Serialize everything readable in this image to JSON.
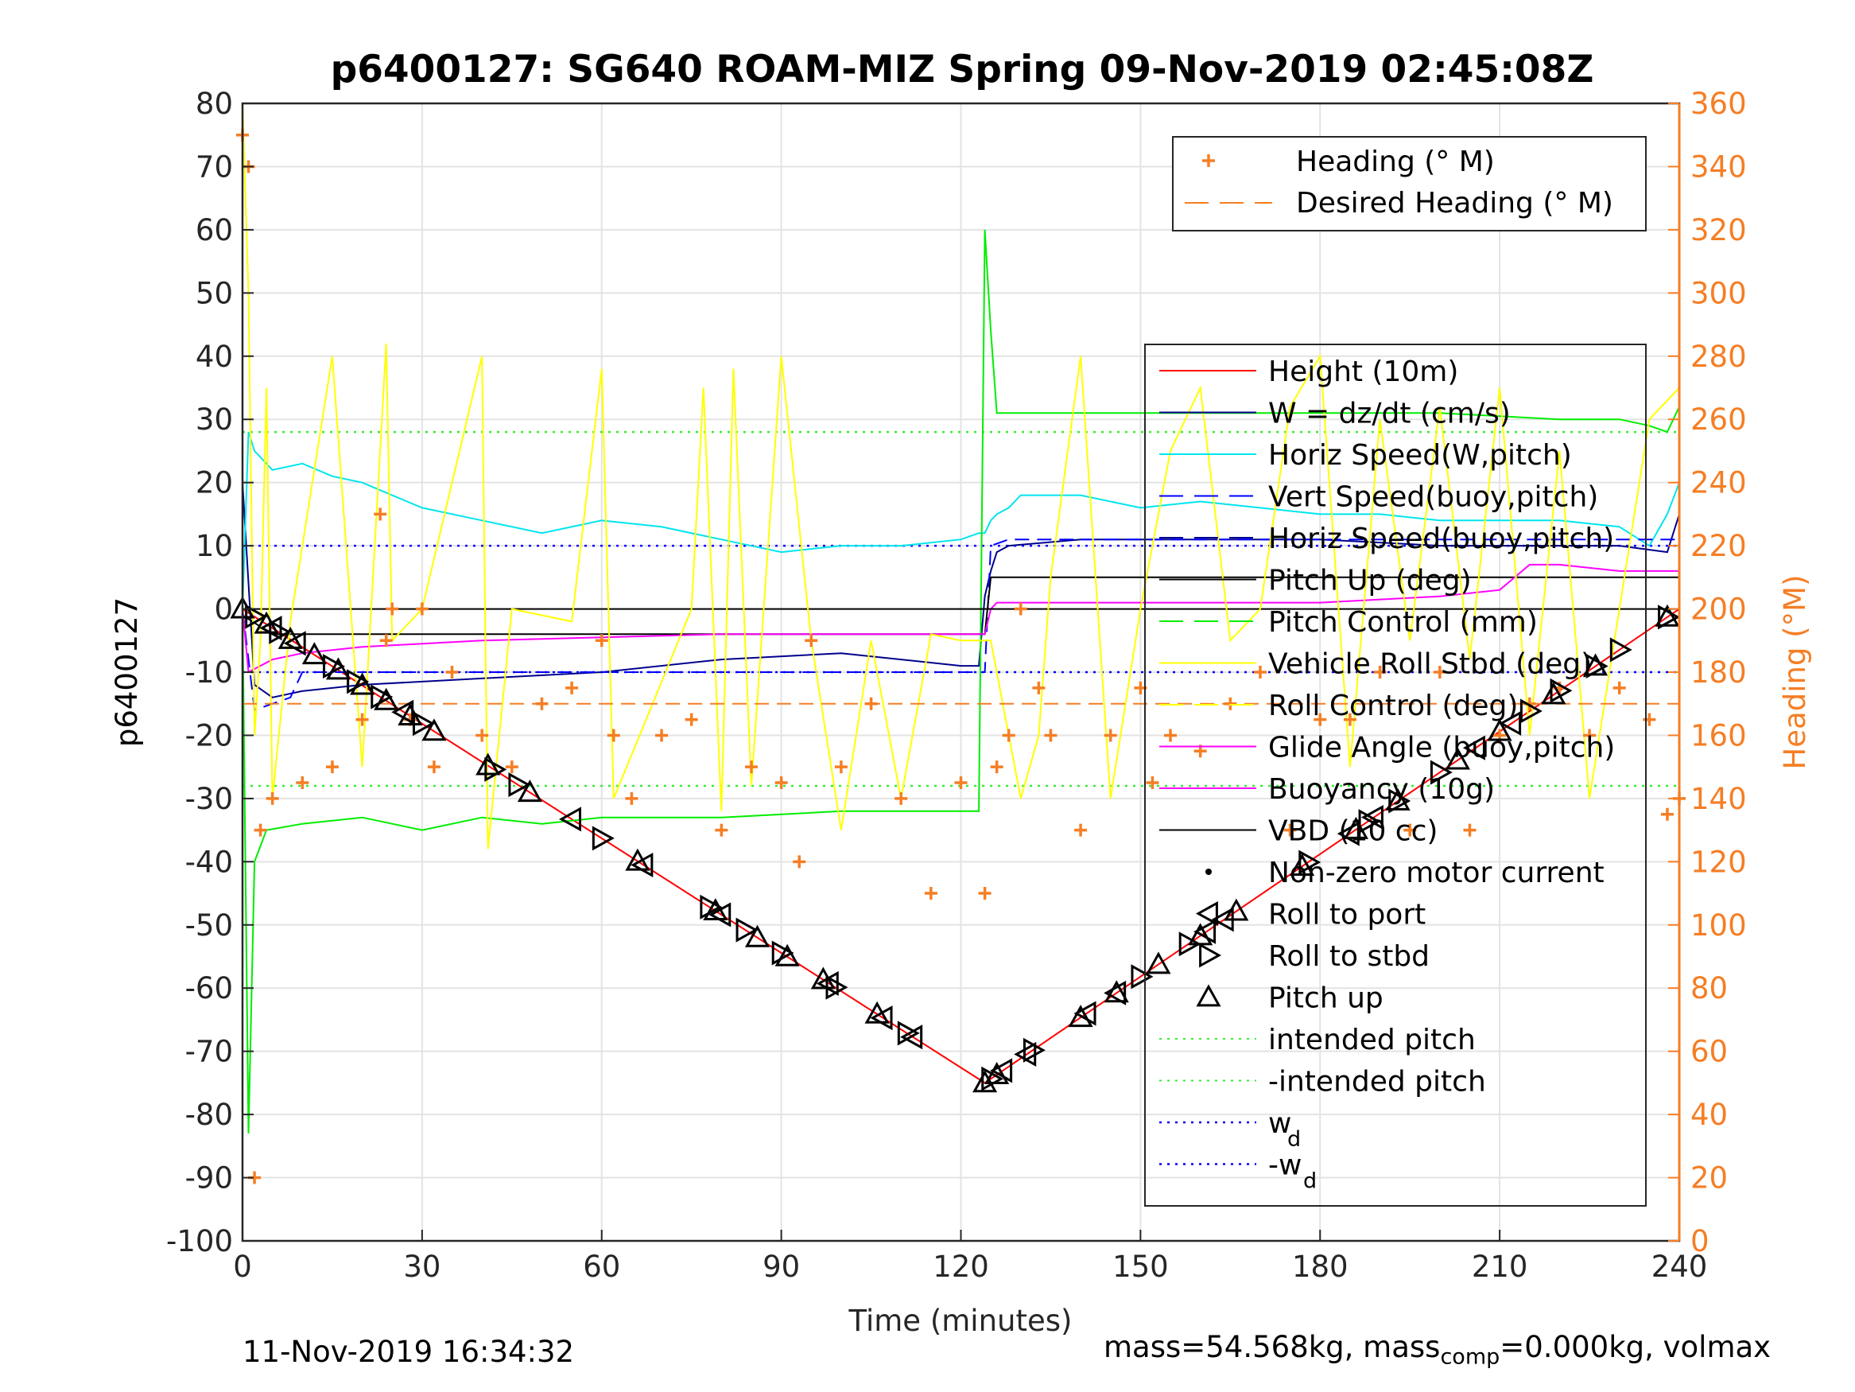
{
  "chart_data": {
    "type": "line",
    "title": "p6400127: SG640 ROAM-MIZ Spring 09-Nov-2019 02:45:08Z",
    "xlabel": "Time (minutes)",
    "ylabel": "p6400127",
    "ylabel_right": "Heading (°M)",
    "xlim": [
      0,
      240
    ],
    "ylim": [
      -100,
      80
    ],
    "ylim_right": [
      0,
      360
    ],
    "xticks": [
      "0",
      "30",
      "60",
      "90",
      "120",
      "150",
      "180",
      "210",
      "240"
    ],
    "yticks": [
      "80",
      "70",
      "60",
      "50",
      "40",
      "30",
      "20",
      "10",
      "0",
      "-10",
      "-20",
      "-30",
      "-40",
      "-50",
      "-60",
      "-70",
      "-80",
      "-90",
      "-100"
    ],
    "yticks_right": [
      "360",
      "340",
      "320",
      "300",
      "280",
      "260",
      "240",
      "220",
      "200",
      "180",
      "160",
      "140",
      "120",
      "100",
      "80",
      "60",
      "40",
      "20",
      "0"
    ],
    "grid": true,
    "colors": {
      "heading": "#f57e24",
      "height": "#ff0000",
      "w": "#00008b",
      "horiz_speed": "#00e5ee",
      "vert_speed": "#0000ff",
      "pitch_control": "#00ee00",
      "roll": "#ffff00",
      "glide": "#ff00ff",
      "vbd": "#000000",
      "wd": "#0000ff",
      "intended": "#33ee33"
    },
    "legend_heading": [
      "Heading (° M)",
      "Desired Heading (° M)"
    ],
    "legend_main": [
      "Height (10m)",
      "W = dz/dt (cm/s)",
      "Horiz Speed(W,pitch)",
      "Vert Speed(buoy,pitch)",
      "Horiz Speed(buoy,pitch)",
      "Pitch Up (deg)",
      "Pitch Control (mm)",
      "Vehicle Roll Stbd (deg)",
      "Roll Control (deg)",
      "Glide Angle (buoy,pitch)",
      "Buoyancy (10g)",
      "VBD (10 cc)",
      "Non-zero motor current",
      "Roll to port",
      "Roll to stbd",
      "Pitch up",
      "intended pitch",
      "-intended pitch"
    ],
    "legend_wd": "w",
    "legend_wd_sub": "d",
    "legend_neg_wd": "-w",
    "legend_neg_wd_sub": "d",
    "series": [
      {
        "name": "Height (10m)",
        "x": [
          0,
          124,
          240
        ],
        "y": [
          0,
          -75,
          0
        ]
      },
      {
        "name": "W = dz/dt (cm/s)",
        "x": [
          0,
          2,
          5,
          10,
          20,
          40,
          60,
          80,
          100,
          110,
          120,
          123,
          124,
          125,
          126,
          128,
          140,
          160,
          180,
          200,
          220,
          230,
          238,
          240
        ],
        "y": [
          20,
          -12,
          -14,
          -13,
          -12,
          -11,
          -10,
          -8,
          -7,
          -8,
          -9,
          -9,
          2,
          6,
          9,
          10,
          11,
          11,
          11,
          10,
          10,
          10,
          9,
          15
        ]
      },
      {
        "name": "Horiz Speed(W,pitch)",
        "x": [
          0,
          1,
          2,
          5,
          10,
          15,
          20,
          25,
          30,
          40,
          50,
          60,
          70,
          80,
          90,
          100,
          110,
          120,
          123,
          124,
          125,
          126,
          128,
          130,
          140,
          150,
          160,
          170,
          180,
          190,
          200,
          210,
          220,
          230,
          235,
          238,
          240
        ],
        "y": [
          0,
          28,
          25,
          22,
          23,
          21,
          20,
          18,
          16,
          14,
          12,
          14,
          13,
          11,
          9,
          10,
          10,
          11,
          12,
          12,
          14,
          15,
          16,
          18,
          18,
          16,
          17,
          16,
          15,
          15,
          14,
          14,
          14,
          13,
          10,
          15,
          20
        ]
      },
      {
        "name": "Vert Speed(buoy,pitch)",
        "x": [
          0,
          2,
          8,
          10,
          124,
          125,
          128,
          240
        ],
        "y": [
          0,
          -16,
          -14,
          -10,
          -10,
          10,
          11,
          11
        ]
      },
      {
        "name": "Pitch Control (mm)",
        "x": [
          0,
          1,
          2,
          4,
          10,
          20,
          30,
          40,
          50,
          60,
          80,
          100,
          120,
          123,
          124,
          125,
          126,
          130,
          140,
          160,
          180,
          200,
          220,
          230,
          235,
          238,
          240
        ],
        "y": [
          0,
          -83,
          -40,
          -35,
          -34,
          -33,
          -35,
          -33,
          -34,
          -33,
          -33,
          -32,
          -32,
          -32,
          60,
          44,
          31,
          31,
          31,
          31,
          31,
          31,
          30,
          30,
          29,
          28,
          32
        ]
      },
      {
        "name": "Pitch Up (deg)",
        "x": [
          0,
          5,
          124,
          125,
          240
        ],
        "y": [
          -1,
          -4,
          -4,
          5,
          5
        ]
      },
      {
        "name": "Glide Angle (buoy,pitch)",
        "x": [
          0,
          1,
          5,
          10,
          20,
          40,
          60,
          80,
          100,
          120,
          124,
          125,
          126,
          140,
          160,
          180,
          200,
          210,
          215,
          220,
          230,
          240
        ],
        "y": [
          0,
          -10,
          -8,
          -7,
          -6,
          -5,
          -4.5,
          -4,
          -4,
          -4,
          -4,
          0,
          1,
          1,
          1,
          1,
          2,
          3,
          7,
          7,
          6,
          6
        ]
      },
      {
        "name": "VBD (10 cc)",
        "x": [
          0,
          240
        ],
        "y": [
          0,
          0
        ]
      },
      {
        "name": "Vehicle Roll Stbd (deg)",
        "x": [
          0,
          1,
          2,
          3,
          4,
          5,
          8,
          10,
          15,
          20,
          24,
          25,
          30,
          40,
          41,
          45,
          55,
          60,
          62,
          75,
          77,
          80,
          82,
          85,
          90,
          95,
          100,
          105,
          110,
          115,
          120,
          125,
          130,
          133,
          135,
          140,
          145,
          150,
          155,
          160,
          165,
          170,
          175,
          180,
          185,
          190,
          195,
          200,
          205,
          210,
          215,
          220,
          225,
          230,
          235,
          240
        ],
        "y": [
          80,
          50,
          -20,
          -5,
          35,
          -30,
          -2,
          10,
          40,
          -25,
          42,
          -5,
          0,
          40,
          -38,
          0,
          -2,
          38,
          -30,
          0,
          35,
          -32,
          38,
          -28,
          40,
          -5,
          -35,
          -5,
          -30,
          -4,
          -5,
          -5,
          -30,
          -20,
          5,
          40,
          -30,
          0,
          25,
          35,
          -5,
          0,
          32,
          40,
          -25,
          30,
          -5,
          32,
          -8,
          35,
          -20,
          25,
          -30,
          0,
          30,
          35
        ]
      },
      {
        "name": "Heading (° M)",
        "x": [
          0,
          1,
          2,
          3,
          5,
          10,
          15,
          20,
          23,
          24,
          25,
          28,
          30,
          32,
          35,
          40,
          45,
          50,
          55,
          60,
          62,
          65,
          70,
          75,
          80,
          85,
          90,
          93,
          95,
          100,
          105,
          110,
          115,
          120,
          124,
          126,
          128,
          130,
          133,
          135,
          140,
          145,
          150,
          152,
          155,
          160,
          165,
          170,
          175,
          180,
          185,
          190,
          195,
          200,
          205,
          210,
          215,
          220,
          225,
          230,
          235,
          238,
          240
        ],
        "y": [
          350,
          340,
          20,
          130,
          140,
          145,
          150,
          165,
          230,
          190,
          200,
          165,
          200,
          150,
          180,
          160,
          150,
          170,
          175,
          190,
          160,
          140,
          160,
          165,
          130,
          150,
          145,
          120,
          190,
          150,
          170,
          140,
          110,
          145,
          110,
          150,
          160,
          200,
          175,
          160,
          130,
          160,
          175,
          145,
          160,
          155,
          170,
          180,
          130,
          165,
          165,
          180,
          130,
          180,
          130,
          160,
          170,
          175,
          160,
          175,
          165,
          135,
          140
        ]
      },
      {
        "name": "Desired Heading (° M)",
        "x": [
          0,
          240
        ],
        "y": [
          170,
          170
        ]
      }
    ],
    "roll_to_port_x": [
      5,
      9,
      27,
      55,
      67,
      80,
      98,
      107,
      112,
      127,
      131,
      141,
      146,
      161,
      164,
      185,
      189,
      206,
      212
    ],
    "roll_to_stbd_x": [
      2,
      6,
      15,
      19,
      23,
      30,
      42,
      46,
      60,
      78,
      84,
      90,
      99,
      111,
      125,
      132,
      150,
      158,
      178,
      188,
      193,
      200,
      215,
      220,
      226,
      230,
      238
    ],
    "pitch_up_x": [
      0,
      4,
      8,
      12,
      16,
      20,
      24,
      28,
      32,
      41,
      48,
      66,
      79,
      86,
      91,
      97,
      106,
      124,
      126,
      140,
      146,
      153,
      160,
      166,
      177,
      186,
      193,
      203,
      210,
      219,
      226,
      238
    ]
  },
  "footer": {
    "timestamp": "11-Nov-2019 16:34:32",
    "mass_text": "mass=54.568kg, mass",
    "mass_sub": "comp",
    "mass_rest": "=0.000kg, volmax"
  }
}
